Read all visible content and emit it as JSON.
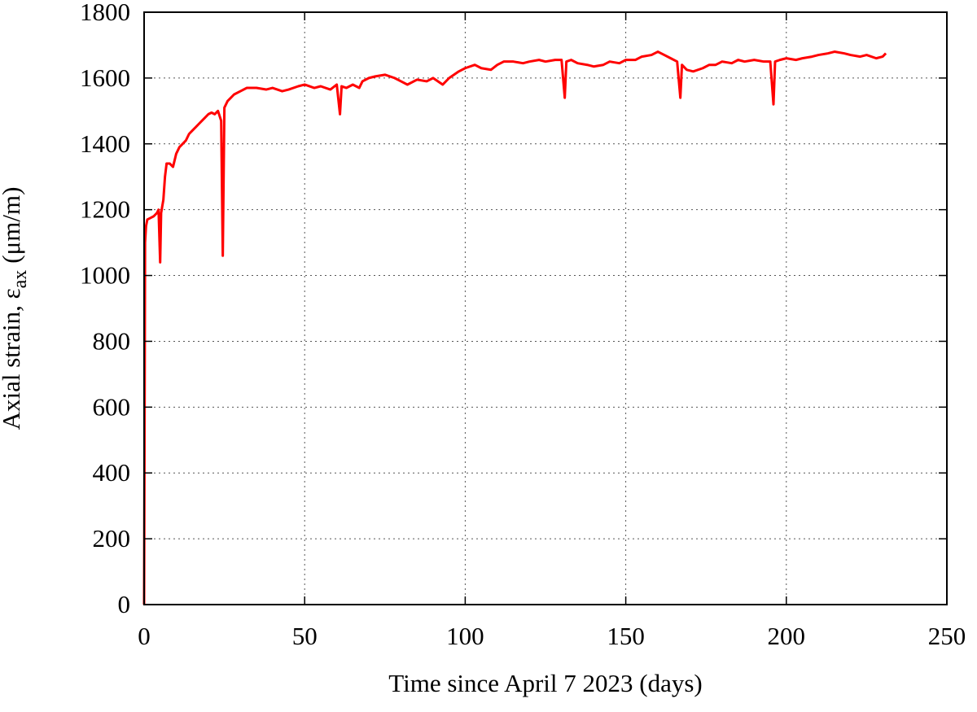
{
  "chart_data": {
    "type": "line",
    "xlabel": "Time since April 7 2023 (days)",
    "ylabel": "Axial strain, ε",
    "ylabel_subscript": "ax",
    "ylabel_unit": "(μm/m)",
    "color": "#ff0000",
    "grid": true,
    "xlim": [
      0,
      250
    ],
    "xticks": [
      0,
      50,
      100,
      150,
      200,
      250
    ],
    "ylim": [
      0,
      1800
    ],
    "yticks": [
      0,
      200,
      400,
      600,
      800,
      1000,
      1200,
      1400,
      1600,
      1800
    ],
    "x": [
      0,
      0.3,
      0.6,
      1,
      2,
      3,
      4,
      4.5,
      5,
      5.3,
      6,
      6.5,
      7,
      8,
      9,
      10,
      11,
      12,
      13,
      14,
      15,
      16,
      17,
      18,
      19,
      20,
      21,
      22,
      23,
      24,
      24.5,
      25,
      26,
      27,
      28,
      30,
      32,
      35,
      38,
      40,
      43,
      45,
      48,
      50,
      53,
      55,
      58,
      60,
      61,
      61.5,
      63,
      65,
      67,
      68,
      70,
      72,
      75,
      78,
      80,
      82,
      85,
      88,
      90,
      93,
      95,
      98,
      100,
      103,
      105,
      108,
      110,
      112,
      115,
      118,
      120,
      123,
      125,
      128,
      130,
      131,
      131.5,
      133,
      135,
      138,
      140,
      143,
      145,
      148,
      150,
      153,
      155,
      158,
      160,
      162,
      164,
      166,
      167,
      167.5,
      169,
      171,
      174,
      176,
      178,
      180,
      183,
      185,
      187,
      190,
      193,
      195,
      196,
      196.5,
      198,
      200,
      203,
      205,
      208,
      210,
      213,
      215,
      218,
      220,
      223,
      225,
      228,
      230,
      231
    ],
    "values": [
      0,
      1100,
      1150,
      1170,
      1175,
      1180,
      1190,
      1200,
      1040,
      1190,
      1230,
      1300,
      1340,
      1340,
      1330,
      1370,
      1390,
      1400,
      1410,
      1430,
      1440,
      1450,
      1460,
      1470,
      1480,
      1490,
      1495,
      1490,
      1500,
      1470,
      1060,
      1510,
      1530,
      1540,
      1550,
      1560,
      1570,
      1570,
      1565,
      1570,
      1560,
      1565,
      1575,
      1580,
      1570,
      1575,
      1565,
      1580,
      1490,
      1575,
      1570,
      1580,
      1570,
      1590,
      1600,
      1605,
      1610,
      1600,
      1590,
      1580,
      1595,
      1590,
      1600,
      1580,
      1600,
      1620,
      1630,
      1640,
      1630,
      1625,
      1640,
      1650,
      1650,
      1645,
      1650,
      1655,
      1650,
      1655,
      1655,
      1540,
      1650,
      1655,
      1645,
      1640,
      1635,
      1640,
      1650,
      1645,
      1655,
      1655,
      1665,
      1670,
      1680,
      1670,
      1660,
      1650,
      1540,
      1640,
      1625,
      1620,
      1630,
      1640,
      1640,
      1650,
      1645,
      1655,
      1650,
      1655,
      1650,
      1650,
      1520,
      1650,
      1655,
      1660,
      1655,
      1660,
      1665,
      1670,
      1675,
      1680,
      1675,
      1670,
      1665,
      1670,
      1660,
      1665,
      1675
    ]
  }
}
